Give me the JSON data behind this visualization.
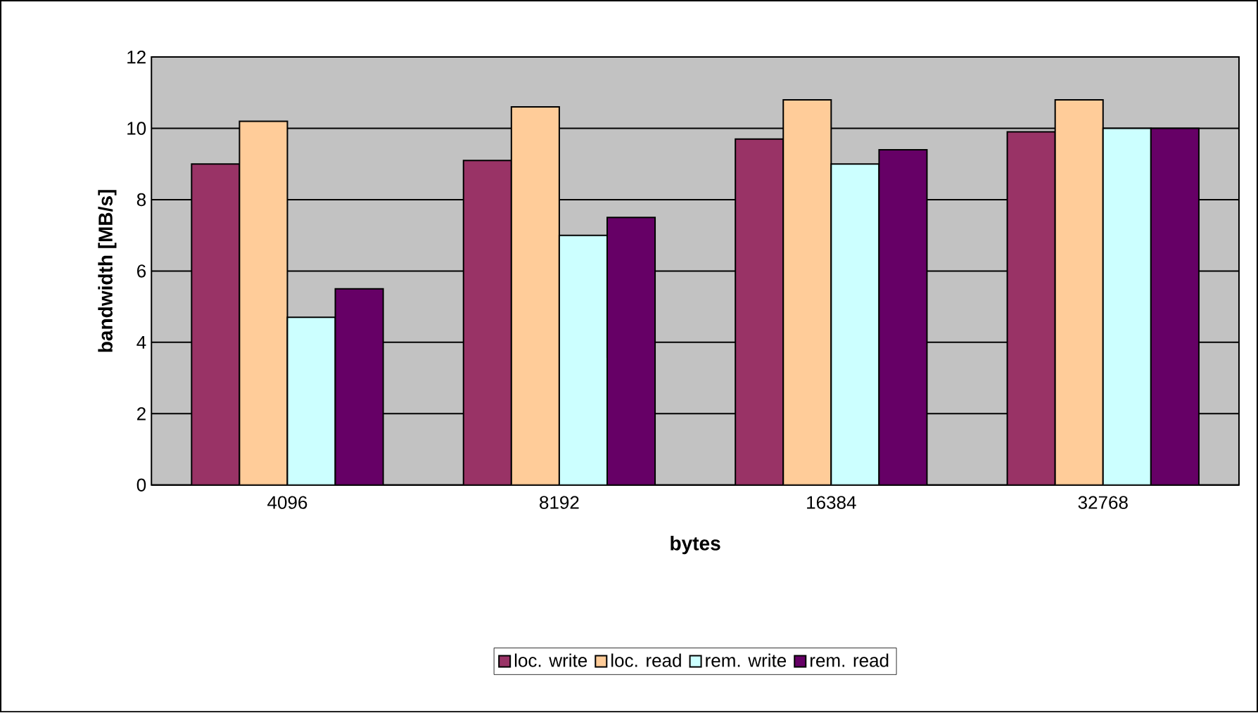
{
  "chart_data": {
    "type": "bar",
    "xlabel": "bytes",
    "ylabel": "bandwidth [MB/s]",
    "categories": [
      "4096",
      "8192",
      "16384",
      "32768"
    ],
    "series": [
      {
        "name": "loc. write",
        "color": "#993366",
        "values": [
          9.0,
          9.1,
          9.7,
          9.9
        ]
      },
      {
        "name": "loc. read",
        "color": "#ffcc99",
        "values": [
          10.2,
          10.6,
          10.8,
          10.8
        ]
      },
      {
        "name": "rem. write",
        "color": "#ccffff",
        "values": [
          4.7,
          7.0,
          9.0,
          10.0
        ]
      },
      {
        "name": "rem. read",
        "color": "#660066",
        "values": [
          5.5,
          7.5,
          9.4,
          10.0
        ]
      }
    ],
    "ylim": [
      0,
      12
    ],
    "yticks": [
      0,
      2,
      4,
      6,
      8,
      10,
      12
    ],
    "grid": "y",
    "legend": "bottom"
  }
}
